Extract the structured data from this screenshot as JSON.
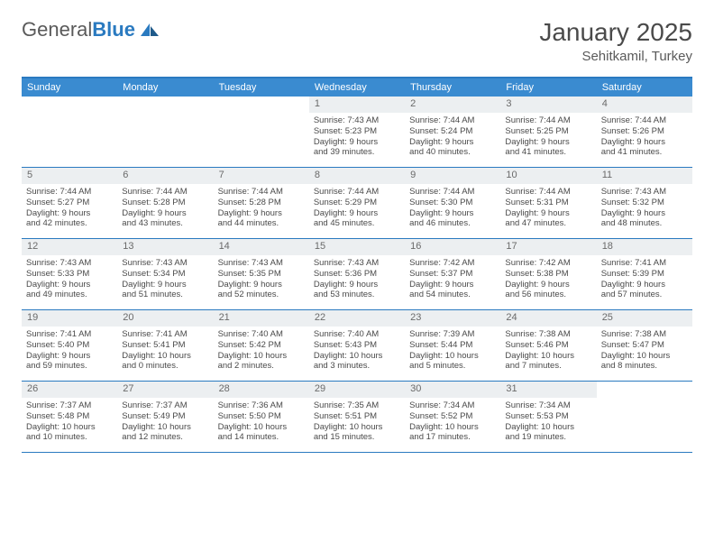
{
  "logo": {
    "textGray": "General",
    "textBlue": "Blue"
  },
  "title": "January 2025",
  "location": "Sehitkamil, Turkey",
  "colors": {
    "headerBlue": "#3a8bd0",
    "borderBlue": "#2a7ac0",
    "dayNumBg": "#eceff1",
    "textGray": "#4a4a4a"
  },
  "daysOfWeek": [
    "Sunday",
    "Monday",
    "Tuesday",
    "Wednesday",
    "Thursday",
    "Friday",
    "Saturday"
  ],
  "weeks": [
    [
      {
        "n": "",
        "lines": []
      },
      {
        "n": "",
        "lines": []
      },
      {
        "n": "",
        "lines": []
      },
      {
        "n": "1",
        "lines": [
          "Sunrise: 7:43 AM",
          "Sunset: 5:23 PM",
          "Daylight: 9 hours",
          "and 39 minutes."
        ]
      },
      {
        "n": "2",
        "lines": [
          "Sunrise: 7:44 AM",
          "Sunset: 5:24 PM",
          "Daylight: 9 hours",
          "and 40 minutes."
        ]
      },
      {
        "n": "3",
        "lines": [
          "Sunrise: 7:44 AM",
          "Sunset: 5:25 PM",
          "Daylight: 9 hours",
          "and 41 minutes."
        ]
      },
      {
        "n": "4",
        "lines": [
          "Sunrise: 7:44 AM",
          "Sunset: 5:26 PM",
          "Daylight: 9 hours",
          "and 41 minutes."
        ]
      }
    ],
    [
      {
        "n": "5",
        "lines": [
          "Sunrise: 7:44 AM",
          "Sunset: 5:27 PM",
          "Daylight: 9 hours",
          "and 42 minutes."
        ]
      },
      {
        "n": "6",
        "lines": [
          "Sunrise: 7:44 AM",
          "Sunset: 5:28 PM",
          "Daylight: 9 hours",
          "and 43 minutes."
        ]
      },
      {
        "n": "7",
        "lines": [
          "Sunrise: 7:44 AM",
          "Sunset: 5:28 PM",
          "Daylight: 9 hours",
          "and 44 minutes."
        ]
      },
      {
        "n": "8",
        "lines": [
          "Sunrise: 7:44 AM",
          "Sunset: 5:29 PM",
          "Daylight: 9 hours",
          "and 45 minutes."
        ]
      },
      {
        "n": "9",
        "lines": [
          "Sunrise: 7:44 AM",
          "Sunset: 5:30 PM",
          "Daylight: 9 hours",
          "and 46 minutes."
        ]
      },
      {
        "n": "10",
        "lines": [
          "Sunrise: 7:44 AM",
          "Sunset: 5:31 PM",
          "Daylight: 9 hours",
          "and 47 minutes."
        ]
      },
      {
        "n": "11",
        "lines": [
          "Sunrise: 7:43 AM",
          "Sunset: 5:32 PM",
          "Daylight: 9 hours",
          "and 48 minutes."
        ]
      }
    ],
    [
      {
        "n": "12",
        "lines": [
          "Sunrise: 7:43 AM",
          "Sunset: 5:33 PM",
          "Daylight: 9 hours",
          "and 49 minutes."
        ]
      },
      {
        "n": "13",
        "lines": [
          "Sunrise: 7:43 AM",
          "Sunset: 5:34 PM",
          "Daylight: 9 hours",
          "and 51 minutes."
        ]
      },
      {
        "n": "14",
        "lines": [
          "Sunrise: 7:43 AM",
          "Sunset: 5:35 PM",
          "Daylight: 9 hours",
          "and 52 minutes."
        ]
      },
      {
        "n": "15",
        "lines": [
          "Sunrise: 7:43 AM",
          "Sunset: 5:36 PM",
          "Daylight: 9 hours",
          "and 53 minutes."
        ]
      },
      {
        "n": "16",
        "lines": [
          "Sunrise: 7:42 AM",
          "Sunset: 5:37 PM",
          "Daylight: 9 hours",
          "and 54 minutes."
        ]
      },
      {
        "n": "17",
        "lines": [
          "Sunrise: 7:42 AM",
          "Sunset: 5:38 PM",
          "Daylight: 9 hours",
          "and 56 minutes."
        ]
      },
      {
        "n": "18",
        "lines": [
          "Sunrise: 7:41 AM",
          "Sunset: 5:39 PM",
          "Daylight: 9 hours",
          "and 57 minutes."
        ]
      }
    ],
    [
      {
        "n": "19",
        "lines": [
          "Sunrise: 7:41 AM",
          "Sunset: 5:40 PM",
          "Daylight: 9 hours",
          "and 59 minutes."
        ]
      },
      {
        "n": "20",
        "lines": [
          "Sunrise: 7:41 AM",
          "Sunset: 5:41 PM",
          "Daylight: 10 hours",
          "and 0 minutes."
        ]
      },
      {
        "n": "21",
        "lines": [
          "Sunrise: 7:40 AM",
          "Sunset: 5:42 PM",
          "Daylight: 10 hours",
          "and 2 minutes."
        ]
      },
      {
        "n": "22",
        "lines": [
          "Sunrise: 7:40 AM",
          "Sunset: 5:43 PM",
          "Daylight: 10 hours",
          "and 3 minutes."
        ]
      },
      {
        "n": "23",
        "lines": [
          "Sunrise: 7:39 AM",
          "Sunset: 5:44 PM",
          "Daylight: 10 hours",
          "and 5 minutes."
        ]
      },
      {
        "n": "24",
        "lines": [
          "Sunrise: 7:38 AM",
          "Sunset: 5:46 PM",
          "Daylight: 10 hours",
          "and 7 minutes."
        ]
      },
      {
        "n": "25",
        "lines": [
          "Sunrise: 7:38 AM",
          "Sunset: 5:47 PM",
          "Daylight: 10 hours",
          "and 8 minutes."
        ]
      }
    ],
    [
      {
        "n": "26",
        "lines": [
          "Sunrise: 7:37 AM",
          "Sunset: 5:48 PM",
          "Daylight: 10 hours",
          "and 10 minutes."
        ]
      },
      {
        "n": "27",
        "lines": [
          "Sunrise: 7:37 AM",
          "Sunset: 5:49 PM",
          "Daylight: 10 hours",
          "and 12 minutes."
        ]
      },
      {
        "n": "28",
        "lines": [
          "Sunrise: 7:36 AM",
          "Sunset: 5:50 PM",
          "Daylight: 10 hours",
          "and 14 minutes."
        ]
      },
      {
        "n": "29",
        "lines": [
          "Sunrise: 7:35 AM",
          "Sunset: 5:51 PM",
          "Daylight: 10 hours",
          "and 15 minutes."
        ]
      },
      {
        "n": "30",
        "lines": [
          "Sunrise: 7:34 AM",
          "Sunset: 5:52 PM",
          "Daylight: 10 hours",
          "and 17 minutes."
        ]
      },
      {
        "n": "31",
        "lines": [
          "Sunrise: 7:34 AM",
          "Sunset: 5:53 PM",
          "Daylight: 10 hours",
          "and 19 minutes."
        ]
      },
      {
        "n": "",
        "lines": []
      }
    ]
  ]
}
